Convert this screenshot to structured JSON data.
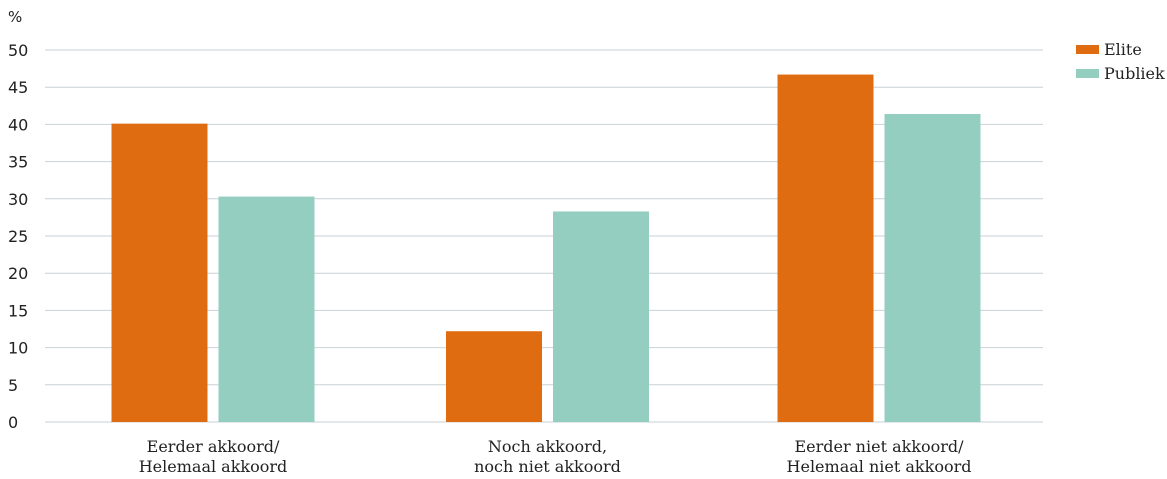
{
  "chart_data": {
    "type": "bar",
    "unit_label": "%",
    "categories": [
      [
        "Eerder akkoord/",
        "Helemaal akkoord"
      ],
      [
        "Noch akkoord,",
        "noch niet akkoord"
      ],
      [
        "Eerder niet akkoord/",
        "Helemaal niet akkoord"
      ]
    ],
    "series": [
      {
        "name": "Elite",
        "color": "#e06c12",
        "values": [
          40.1,
          12.2,
          46.7
        ]
      },
      {
        "name": "Publiek",
        "color": "#93cec0",
        "values": [
          30.3,
          28.3,
          41.4
        ]
      }
    ],
    "ylim": [
      0,
      50
    ],
    "yticks": [
      0,
      5,
      10,
      15,
      20,
      25,
      30,
      35,
      40,
      45,
      50
    ],
    "grid": true,
    "legend_position": "top-right"
  }
}
